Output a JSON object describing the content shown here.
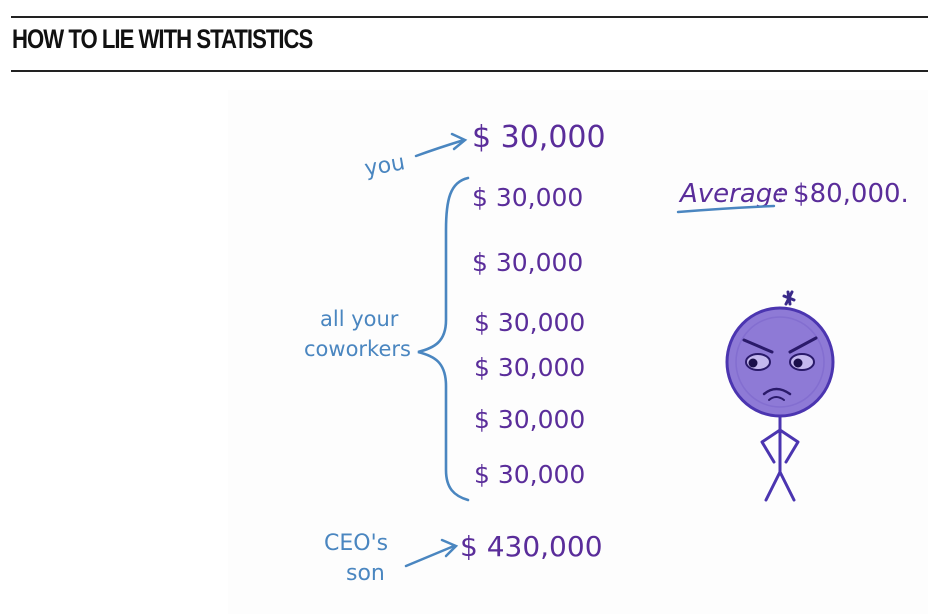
{
  "heading": "HOW TO LIE WITH STATISTICS",
  "illustration": {
    "you_label": "you",
    "you_salary": "$ 30,000",
    "coworkers_label_line1": "all your",
    "coworkers_label_line2": "coworkers",
    "coworker_salaries": [
      "$ 30,000",
      "$ 30,000",
      "$ 30,000",
      "$ 30,000",
      "$ 30,000",
      "$ 30,000"
    ],
    "ceo_label_line1": "CEO's",
    "ceo_label_line2": "son",
    "ceo_salary": "$ 430,000",
    "average_label": "Average",
    "average_value": ": $80,000.",
    "colors": {
      "annotation_blue": "#4a86c0",
      "salary_purple": "#5a2d9a",
      "face_fill": "#8e7ad6",
      "face_stroke": "#4b35b0"
    },
    "character_icon": "grumpy-stick-figure-icon"
  }
}
